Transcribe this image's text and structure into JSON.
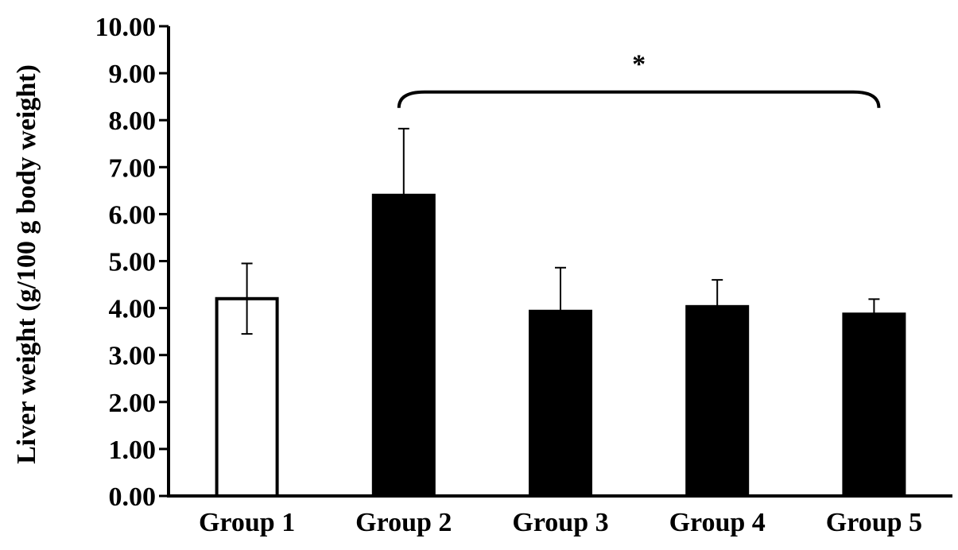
{
  "chart_data": {
    "type": "bar",
    "categories": [
      "Group 1",
      "Group 2",
      "Group 3",
      "Group 4",
      "Group 5"
    ],
    "values": [
      4.2,
      6.4,
      3.93,
      4.03,
      3.87
    ],
    "error": [
      0.75,
      1.42,
      0.93,
      0.57,
      0.32
    ],
    "bar_fill": [
      "#ffffff",
      "#000000",
      "#000000",
      "#000000",
      "#000000"
    ],
    "title": "",
    "xlabel": "",
    "ylabel": "Liver weight (g/100 g body weight)",
    "ylim": [
      0,
      10
    ],
    "yticks": [
      "0.00",
      "1.00",
      "2.00",
      "3.00",
      "4.00",
      "5.00",
      "6.00",
      "7.00",
      "8.00",
      "9.00",
      "10.00"
    ],
    "grid": false,
    "legend": "none",
    "annotations": [
      {
        "text": "*",
        "type": "bracket",
        "from_category": "Group 2",
        "to_category": "Group 5",
        "y_value": 8.6,
        "label_y_value": 9.25
      }
    ]
  }
}
